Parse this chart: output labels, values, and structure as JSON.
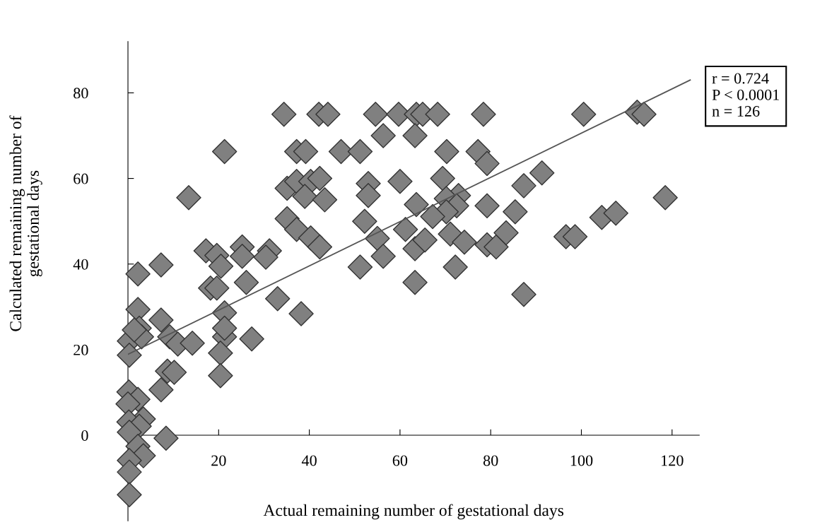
{
  "chart_data": {
    "type": "scatter",
    "xlabel": "Actual remaining number of gestational days",
    "ylabel": "Calculated remaining number of\ngestational days",
    "xlim": [
      0,
      126
    ],
    "ylim": [
      -20,
      92
    ],
    "xticks": [
      20,
      40,
      60,
      80,
      100,
      120
    ],
    "yticks": [
      0,
      20,
      40,
      60,
      80
    ],
    "grid": false,
    "annotations": [
      "r = 0.724",
      "P < 0.0001",
      "n = 126"
    ],
    "series": [
      {
        "marker": "diamond",
        "color": "#808080",
        "x": [
          34.4,
          42.1,
          44.1,
          54.6,
          59.7,
          63.6,
          65,
          68.3,
          78.4,
          100.5,
          112.3,
          113.8,
          56.3,
          63.3,
          21.3,
          37.2,
          39.2,
          47,
          51.2,
          70.3,
          77.2,
          79.2,
          91.3,
          13.4,
          35.1,
          37.2,
          40.3,
          42.3,
          39,
          43.4,
          53,
          53,
          60,
          69.4,
          87.3,
          118.5,
          72.9,
          70.2,
          72.5,
          79.2,
          85.4,
          70.2,
          67.2,
          35.1,
          37.2,
          40.3,
          42.3,
          52.2,
          55,
          56.3,
          51.2,
          61.2,
          63.6,
          63.3,
          63.3,
          71.1,
          65.5,
          74.2,
          79.2,
          81.2,
          83.4,
          96.6,
          98.6,
          104.5,
          107.6,
          72.2,
          87.3,
          17.2,
          19.6,
          20.5,
          25.2,
          25.2,
          31.2,
          30.4,
          7.3,
          2.2,
          18.2,
          19.6,
          26.1,
          33,
          38.2,
          2.2,
          7.3,
          21.3,
          2.5,
          21.3,
          0.3,
          3,
          1.4,
          9.2,
          11,
          14.2,
          21.3,
          27.3,
          0.3,
          20.4,
          20.4,
          8.7,
          10.2,
          7.3,
          0.2,
          2.2,
          0,
          3.4,
          0.2,
          2.5,
          0.3,
          8.4,
          2.2,
          3.4,
          0.3,
          0.3,
          0.3
        ],
        "values": [
          75,
          75,
          75,
          75,
          75,
          75,
          75,
          75,
          75,
          75,
          75.5,
          75,
          70,
          70,
          66.3,
          66.3,
          66.3,
          66.3,
          66.3,
          66.3,
          66.3,
          63.5,
          61.3,
          55.5,
          57.7,
          59.3,
          59.3,
          60,
          55.8,
          55,
          58.8,
          56,
          59.3,
          60,
          58.3,
          55.5,
          56,
          55.3,
          53.6,
          53.6,
          52.2,
          52.2,
          51.1,
          50.6,
          48.1,
          46.1,
          44,
          50,
          46,
          41.8,
          39.3,
          48.1,
          53.9,
          43.6,
          35.7,
          47,
          45.6,
          45.1,
          44.5,
          44,
          47.3,
          46.4,
          46.4,
          50.9,
          51.9,
          39.3,
          32.9,
          43.1,
          42,
          39.5,
          44,
          41.8,
          43.1,
          41.6,
          39.8,
          37.7,
          34.4,
          34.4,
          35.7,
          31.9,
          28.4,
          29.4,
          26.9,
          28.6,
          25,
          23,
          22,
          23,
          24.6,
          23,
          21.3,
          21.5,
          25,
          22.5,
          18.7,
          19.2,
          13.9,
          15,
          14.7,
          10.6,
          10.1,
          8.4,
          7.3,
          3.8,
          3.1,
          2.1,
          0.7,
          -0.7,
          -2.6,
          -4.8,
          -5.9,
          -8.6,
          -13.9
        ]
      },
      {
        "type": "line",
        "color": "#555555",
        "line_style": "solid",
        "marker": "none",
        "x": [
          0,
          124
        ],
        "values": [
          18.9,
          83
        ]
      }
    ]
  }
}
